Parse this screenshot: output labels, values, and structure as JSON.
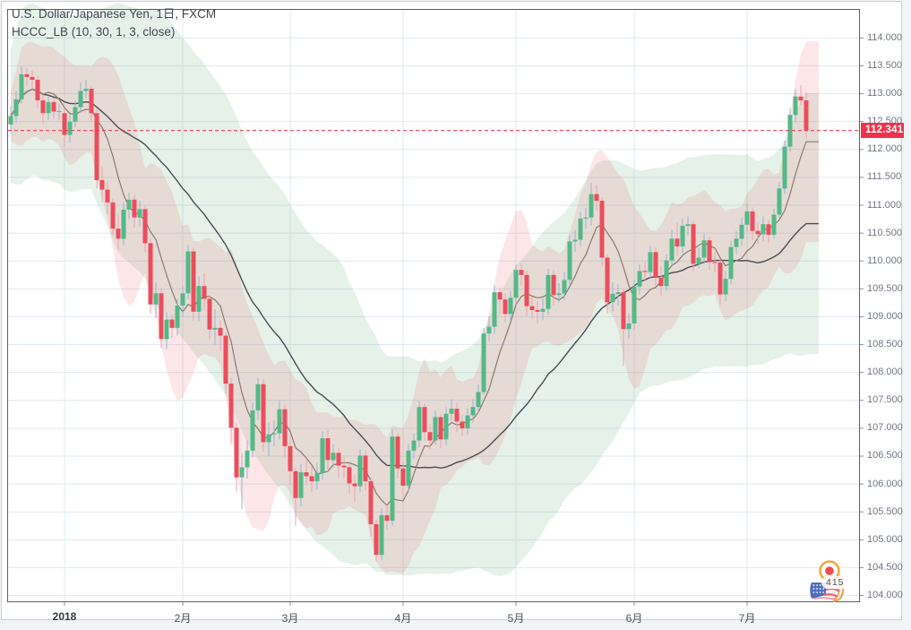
{
  "legend": {
    "line1": "U.S. Dollar/Japanese Yen, 1日, FXCM",
    "line2": "HCCC_LB (10, 30, 1, 3, close)"
  },
  "price_label": {
    "value": "112.341"
  },
  "watermark": {
    "counter": "415"
  },
  "colors": {
    "up": "#53b987",
    "down": "#eb4d5c",
    "up_wick": "#94b7d2",
    "down_wick": "#f0a1ad",
    "fast_line": "#8a7a6b",
    "slow_line": "#4a4d54",
    "band_green": "rgba(96,168,120,0.16)",
    "band_red": "rgba(235,84,100,0.15)",
    "grid": "#e2e9f2",
    "tick": "#8b9099",
    "frame": "#5a5e68",
    "accent_red": "#f0334d",
    "widget_border": "#ccd0d8",
    "logo_orange": "#f6a33b",
    "logo_red": "#ee4b4b",
    "flag_blue": "#4f6fbe",
    "flag_pink": "#ee6b80",
    "flag_pink_light": "#f294a6"
  },
  "chart_data": {
    "type": "candlestick",
    "symbol": "U.S. Dollar/Japanese Yen",
    "timeframe": "1日",
    "exchange": "FXCM",
    "indicator": {
      "name": "HCCC_LB",
      "params": [
        10,
        30,
        1,
        3,
        "close"
      ]
    },
    "current_price": 112.341,
    "y_axis": {
      "min": 103.88,
      "max": 114.52,
      "tick_step": 0.5,
      "first_tick": 114.0,
      "labels": [
        "114.000",
        "113.500",
        "113.000",
        "112.500",
        "112.000",
        "111.500",
        "111.000",
        "110.500",
        "110.000",
        "109.500",
        "109.000",
        "108.500",
        "108.000",
        "107.500",
        "107.000",
        "106.500",
        "106.000",
        "105.500",
        "105.000",
        "104.500",
        "104.000"
      ]
    },
    "x_axis": {
      "ticks": [
        {
          "label": "2018",
          "bar": 10,
          "bold": true
        },
        {
          "label": "2月",
          "bar": 32
        },
        {
          "label": "3月",
          "bar": 52
        },
        {
          "label": "4月",
          "bar": 73
        },
        {
          "label": "5月",
          "bar": 94
        },
        {
          "label": "6月",
          "bar": 116
        },
        {
          "label": "7月",
          "bar": 137
        }
      ]
    },
    "candle_format": "ohlc",
    "candles": [
      [
        112.45,
        112.78,
        112.3,
        112.6
      ],
      [
        112.6,
        113.05,
        112.48,
        112.9
      ],
      [
        112.9,
        113.48,
        112.82,
        113.35
      ],
      [
        113.35,
        113.46,
        113.15,
        113.3
      ],
      [
        113.3,
        113.42,
        113.08,
        113.25
      ],
      [
        113.25,
        113.32,
        112.75,
        112.88
      ],
      [
        112.88,
        112.98,
        112.46,
        112.65
      ],
      [
        112.65,
        112.95,
        112.52,
        112.85
      ],
      [
        112.85,
        112.92,
        112.55,
        112.68
      ],
      [
        112.68,
        112.82,
        112.54,
        112.69
      ],
      [
        112.65,
        112.75,
        112.05,
        112.26
      ],
      [
        112.26,
        112.62,
        112.12,
        112.5
      ],
      [
        112.5,
        112.88,
        112.4,
        112.76
      ],
      [
        112.76,
        113.2,
        112.66,
        113.05
      ],
      [
        113.05,
        113.25,
        112.92,
        113.09
      ],
      [
        113.09,
        113.14,
        112.5,
        112.65
      ],
      [
        112.65,
        112.72,
        111.3,
        111.45
      ],
      [
        111.45,
        111.7,
        111.05,
        111.28
      ],
      [
        111.28,
        111.42,
        110.84,
        111.05
      ],
      [
        111.05,
        111.12,
        110.45,
        110.58
      ],
      [
        110.58,
        110.85,
        110.2,
        110.4
      ],
      [
        110.4,
        111.05,
        110.28,
        110.92
      ],
      [
        110.92,
        111.22,
        110.75,
        111.1
      ],
      [
        111.1,
        111.18,
        110.6,
        110.78
      ],
      [
        110.78,
        111.08,
        110.62,
        110.93
      ],
      [
        110.93,
        111.0,
        110.15,
        110.32
      ],
      [
        110.32,
        110.4,
        109.05,
        109.22
      ],
      [
        109.22,
        109.62,
        108.98,
        109.42
      ],
      [
        109.42,
        109.5,
        108.44,
        108.6
      ],
      [
        108.6,
        109.08,
        108.42,
        108.95
      ],
      [
        108.95,
        109.05,
        108.62,
        108.8
      ],
      [
        108.8,
        109.32,
        108.66,
        109.2
      ],
      [
        109.2,
        109.55,
        109.0,
        109.42
      ],
      [
        109.42,
        110.29,
        109.32,
        110.17
      ],
      [
        110.17,
        110.25,
        108.92,
        109.09
      ],
      [
        109.09,
        109.72,
        108.92,
        109.55
      ],
      [
        109.55,
        109.78,
        109.11,
        109.32
      ],
      [
        109.32,
        109.4,
        108.6,
        108.77
      ],
      [
        108.77,
        109.14,
        108.5,
        108.8
      ],
      [
        108.8,
        108.94,
        108.38,
        108.66
      ],
      [
        108.66,
        108.72,
        107.62,
        107.8
      ],
      [
        107.8,
        107.9,
        106.72,
        107.01
      ],
      [
        107.01,
        107.1,
        105.86,
        106.12
      ],
      [
        106.12,
        106.56,
        105.55,
        106.3
      ],
      [
        106.3,
        106.78,
        106.1,
        106.6
      ],
      [
        106.6,
        107.46,
        106.48,
        107.32
      ],
      [
        107.32,
        107.9,
        107.15,
        107.79
      ],
      [
        107.79,
        107.88,
        106.58,
        106.75
      ],
      [
        106.75,
        107.1,
        106.5,
        106.89
      ],
      [
        106.89,
        107.14,
        106.68,
        106.91
      ],
      [
        106.91,
        107.5,
        106.8,
        107.34
      ],
      [
        107.34,
        107.42,
        106.48,
        106.68
      ],
      [
        106.68,
        106.78,
        105.98,
        106.23
      ],
      [
        106.23,
        106.3,
        105.25,
        105.75
      ],
      [
        105.75,
        106.36,
        105.6,
        106.21
      ],
      [
        106.21,
        106.46,
        105.98,
        106.14
      ],
      [
        106.14,
        106.32,
        105.85,
        106.05
      ],
      [
        106.05,
        106.38,
        105.9,
        106.2
      ],
      [
        106.2,
        106.95,
        106.08,
        106.82
      ],
      [
        106.82,
        106.97,
        106.26,
        106.43
      ],
      [
        106.43,
        106.72,
        106.3,
        106.56
      ],
      [
        106.56,
        106.64,
        106.12,
        106.33
      ],
      [
        106.33,
        106.48,
        106.1,
        106.3
      ],
      [
        106.3,
        106.38,
        105.82,
        106.01
      ],
      [
        106.01,
        106.16,
        105.68,
        105.96
      ],
      [
        105.96,
        106.62,
        105.85,
        106.51
      ],
      [
        106.51,
        106.6,
        105.88,
        106.05
      ],
      [
        106.05,
        106.12,
        105.05,
        105.28
      ],
      [
        105.28,
        105.36,
        104.62,
        104.73
      ],
      [
        104.73,
        105.56,
        104.64,
        105.44
      ],
      [
        105.44,
        105.62,
        105.18,
        105.34
      ],
      [
        105.34,
        106.98,
        105.26,
        106.85
      ],
      [
        106.85,
        106.92,
        106.1,
        106.28
      ],
      [
        106.28,
        106.4,
        105.78,
        105.97
      ],
      [
        105.97,
        106.72,
        105.85,
        106.6
      ],
      [
        106.6,
        106.92,
        106.45,
        106.78
      ],
      [
        106.78,
        107.49,
        106.66,
        107.38
      ],
      [
        107.38,
        107.44,
        106.78,
        106.93
      ],
      [
        106.93,
        107.08,
        106.62,
        106.78
      ],
      [
        106.78,
        107.32,
        106.7,
        107.2
      ],
      [
        107.2,
        107.26,
        106.64,
        106.8
      ],
      [
        106.8,
        107.38,
        106.7,
        107.26
      ],
      [
        107.26,
        107.52,
        107.12,
        107.35
      ],
      [
        107.35,
        107.46,
        106.94,
        107.12
      ],
      [
        107.12,
        107.24,
        106.86,
        107.0
      ],
      [
        107.0,
        107.36,
        106.88,
        107.23
      ],
      [
        107.23,
        107.52,
        107.1,
        107.38
      ],
      [
        107.38,
        107.78,
        107.28,
        107.65
      ],
      [
        107.65,
        108.8,
        107.6,
        108.7
      ],
      [
        108.7,
        109.0,
        108.55,
        108.82
      ],
      [
        108.82,
        109.56,
        108.7,
        109.44
      ],
      [
        109.44,
        109.52,
        109.05,
        109.31
      ],
      [
        109.31,
        109.42,
        108.9,
        109.05
      ],
      [
        109.05,
        109.46,
        108.94,
        109.34
      ],
      [
        109.34,
        109.94,
        109.22,
        109.84
      ],
      [
        109.84,
        109.96,
        109.56,
        109.75
      ],
      [
        109.75,
        109.82,
        109.02,
        109.19
      ],
      [
        109.19,
        109.36,
        108.96,
        109.12
      ],
      [
        109.12,
        109.28,
        108.88,
        109.09
      ],
      [
        109.09,
        109.32,
        108.94,
        109.14
      ],
      [
        109.14,
        109.86,
        109.04,
        109.75
      ],
      [
        109.75,
        109.84,
        109.2,
        109.39
      ],
      [
        109.39,
        109.6,
        109.26,
        109.42
      ],
      [
        109.42,
        109.8,
        109.3,
        109.66
      ],
      [
        109.66,
        110.46,
        109.58,
        110.35
      ],
      [
        110.35,
        110.56,
        110.16,
        110.38
      ],
      [
        110.38,
        110.88,
        110.26,
        110.76
      ],
      [
        110.76,
        110.95,
        110.58,
        110.78
      ],
      [
        110.78,
        111.4,
        110.64,
        111.2
      ],
      [
        111.2,
        111.36,
        110.9,
        111.08
      ],
      [
        111.08,
        111.14,
        109.9,
        110.06
      ],
      [
        110.06,
        110.12,
        109.06,
        109.26
      ],
      [
        109.26,
        109.62,
        109.1,
        109.41
      ],
      [
        109.41,
        109.58,
        109.2,
        109.44
      ],
      [
        109.44,
        109.5,
        108.12,
        108.78
      ],
      [
        108.78,
        109.06,
        108.6,
        108.88
      ],
      [
        108.88,
        109.66,
        108.76,
        109.54
      ],
      [
        109.54,
        109.94,
        109.4,
        109.82
      ],
      [
        109.82,
        109.98,
        109.64,
        109.8
      ],
      [
        109.8,
        110.27,
        109.7,
        110.16
      ],
      [
        110.16,
        110.24,
        109.56,
        109.7
      ],
      [
        109.7,
        109.9,
        109.38,
        109.55
      ],
      [
        109.55,
        110.12,
        109.46,
        110.01
      ],
      [
        110.01,
        110.56,
        109.92,
        110.4
      ],
      [
        110.4,
        110.68,
        110.1,
        110.26
      ],
      [
        110.26,
        110.76,
        110.14,
        110.63
      ],
      [
        110.63,
        110.8,
        110.46,
        110.66
      ],
      [
        110.66,
        110.72,
        109.82,
        109.95
      ],
      [
        109.95,
        110.24,
        109.86,
        110.06
      ],
      [
        110.06,
        110.48,
        109.94,
        110.37
      ],
      [
        110.37,
        110.44,
        109.84,
        109.98
      ],
      [
        109.98,
        110.16,
        109.8,
        109.97
      ],
      [
        109.97,
        110.02,
        109.22,
        109.4
      ],
      [
        109.4,
        109.82,
        109.28,
        109.68
      ],
      [
        109.68,
        110.36,
        109.58,
        110.25
      ],
      [
        110.25,
        110.54,
        110.12,
        110.4
      ],
      [
        110.4,
        110.78,
        110.28,
        110.65
      ],
      [
        110.65,
        111.04,
        110.52,
        110.89
      ],
      [
        110.89,
        110.96,
        110.38,
        110.54
      ],
      [
        110.54,
        110.7,
        110.3,
        110.48
      ],
      [
        110.48,
        110.8,
        110.36,
        110.66
      ],
      [
        110.66,
        110.74,
        110.32,
        110.47
      ],
      [
        110.47,
        110.94,
        110.4,
        110.83
      ],
      [
        110.83,
        111.42,
        110.76,
        111.3
      ],
      [
        111.3,
        112.16,
        111.2,
        112.05
      ],
      [
        112.05,
        112.74,
        111.96,
        112.62
      ],
      [
        112.62,
        113.08,
        112.48,
        112.95
      ],
      [
        112.95,
        113.15,
        112.8,
        112.88
      ],
      [
        112.88,
        113.02,
        112.2,
        112.341
      ]
    ]
  }
}
